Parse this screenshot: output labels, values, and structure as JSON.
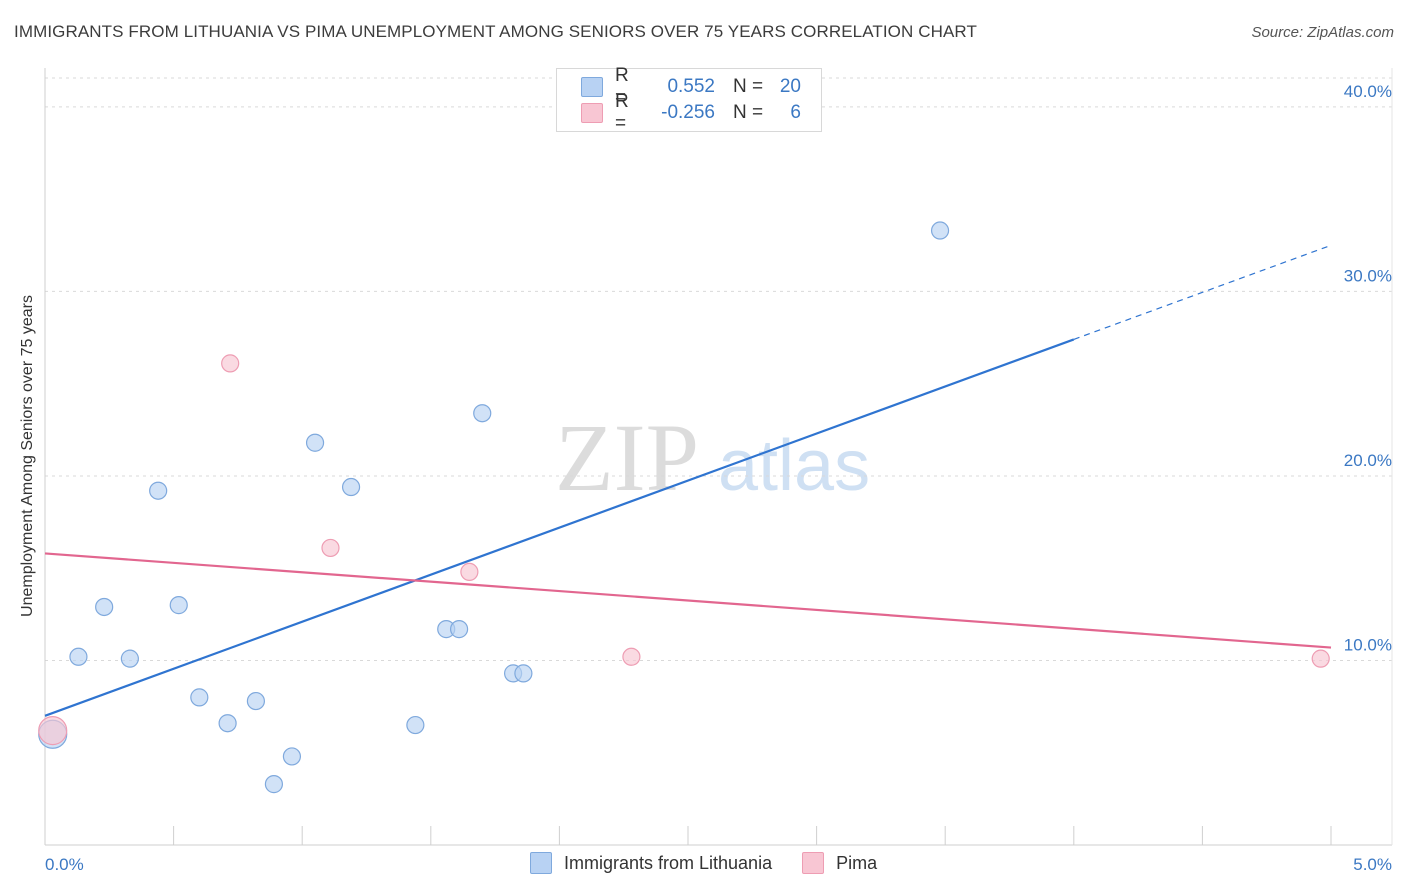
{
  "header": {
    "title": "IMMIGRANTS FROM LITHUANIA VS PIMA UNEMPLOYMENT AMONG SENIORS OVER 75 YEARS CORRELATION CHART",
    "source": "Source: ZipAtlas.com"
  },
  "watermark": {
    "zip": "ZIP",
    "atlas": "atlas"
  },
  "legend": {
    "rows": [
      {
        "r_label": "R =",
        "r_value": "0.552",
        "n_label": "N =",
        "n_value": "20"
      },
      {
        "r_label": "R =",
        "r_value": "-0.256",
        "n_label": "N =",
        "n_value": "6"
      }
    ]
  },
  "colors": {
    "series1_fill": "#b8d2f3",
    "series1_stroke": "#7fa9dd",
    "series1_line": "#2f74d0",
    "series2_fill": "#f8c6d3",
    "series2_stroke": "#ee9db3",
    "series2_line": "#e2668f",
    "tick": "#3b78c3",
    "grid": "#d9d9d9"
  },
  "chart_data": {
    "type": "scatter",
    "title": "IMMIGRANTS FROM LITHUANIA VS PIMA UNEMPLOYMENT AMONG SENIORS OVER 75 YEARS CORRELATION CHART",
    "xlabel": "",
    "ylabel": "Unemployment Among Seniors over 75 years",
    "xlim": [
      0,
      5
    ],
    "ylim": [
      0,
      42
    ],
    "x_tick_labels": [
      "0.0%",
      "5.0%"
    ],
    "y_ticks": [
      10,
      20,
      30,
      40
    ],
    "y_tick_labels": [
      "10.0%",
      "20.0%",
      "30.0%",
      "40.0%"
    ],
    "grid": true,
    "legend_position": "bottom",
    "series": [
      {
        "name": "Immigrants from Lithuania",
        "points": [
          {
            "x": 0.03,
            "y": 6.0,
            "big": true
          },
          {
            "x": 0.13,
            "y": 10.2
          },
          {
            "x": 0.23,
            "y": 12.9
          },
          {
            "x": 0.33,
            "y": 10.1
          },
          {
            "x": 0.44,
            "y": 19.2
          },
          {
            "x": 0.52,
            "y": 13.0
          },
          {
            "x": 0.6,
            "y": 8.0
          },
          {
            "x": 0.71,
            "y": 6.6
          },
          {
            "x": 0.82,
            "y": 7.8
          },
          {
            "x": 0.89,
            "y": 3.3
          },
          {
            "x": 0.96,
            "y": 4.8
          },
          {
            "x": 1.05,
            "y": 21.8
          },
          {
            "x": 1.19,
            "y": 19.4
          },
          {
            "x": 1.44,
            "y": 6.5
          },
          {
            "x": 1.56,
            "y": 11.7
          },
          {
            "x": 1.61,
            "y": 11.7
          },
          {
            "x": 1.7,
            "y": 23.4
          },
          {
            "x": 1.82,
            "y": 9.3
          },
          {
            "x": 1.86,
            "y": 9.3
          },
          {
            "x": 3.48,
            "y": 33.3
          }
        ],
        "trend": {
          "x0": 0.0,
          "y0": 7.0,
          "x1": 4.0,
          "y1": 27.4,
          "x_dash_end": 5.0,
          "y_dash_end": 32.5
        }
      },
      {
        "name": "Pima",
        "points": [
          {
            "x": 0.03,
            "y": 6.2,
            "big": true
          },
          {
            "x": 0.72,
            "y": 26.1
          },
          {
            "x": 1.11,
            "y": 16.1
          },
          {
            "x": 1.65,
            "y": 14.8
          },
          {
            "x": 2.28,
            "y": 10.2
          },
          {
            "x": 4.96,
            "y": 10.1
          }
        ],
        "trend": {
          "x0": 0.0,
          "y0": 15.8,
          "x1": 5.0,
          "y1": 10.7
        }
      }
    ]
  }
}
